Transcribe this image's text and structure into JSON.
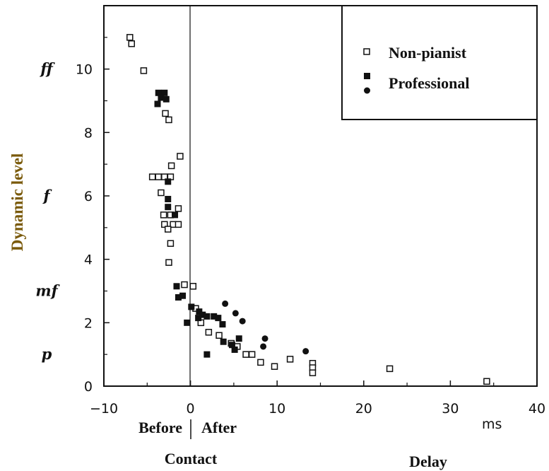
{
  "chart_data": {
    "type": "scatter",
    "ylabel": "Dynamic level",
    "x_unit": "ms",
    "xlim": [
      -10,
      40
    ],
    "ylim": [
      0,
      12
    ],
    "x_ticks": [
      -10,
      0,
      10,
      20,
      30,
      40
    ],
    "y_ticks": [
      0,
      2,
      4,
      6,
      8,
      10
    ],
    "x_tick_labels": [
      "−10",
      "0",
      "10",
      "20",
      "30",
      "40"
    ],
    "y_tick_labels": [
      "0",
      "2",
      "4",
      "6",
      "8",
      "10"
    ],
    "dynamic_markings": [
      {
        "label": "ff",
        "y": 10
      },
      {
        "label": "f",
        "y": 6
      },
      {
        "label": "mf",
        "y": 3
      },
      {
        "label": "p",
        "y": 1
      }
    ],
    "annotations": {
      "before": "Before",
      "after": "After",
      "contact": "Contact",
      "delay": "Delay"
    },
    "legend": {
      "placement": "top-right",
      "entries": [
        {
          "label": "Non-pianist",
          "markers": [
            "open-square"
          ]
        },
        {
          "label": "Professional",
          "markers": [
            "filled-square",
            "filled-circle"
          ]
        }
      ]
    },
    "series": [
      {
        "name": "Non-pianist",
        "marker": "open-square",
        "points": [
          [
            -7.0,
            11.0
          ],
          [
            -6.8,
            10.8
          ],
          [
            -5.4,
            9.95
          ],
          [
            -2.9,
            8.6
          ],
          [
            -2.5,
            8.4
          ],
          [
            -1.2,
            7.25
          ],
          [
            -2.2,
            6.95
          ],
          [
            -4.4,
            6.6
          ],
          [
            -3.7,
            6.6
          ],
          [
            -3.0,
            6.6
          ],
          [
            -2.3,
            6.6
          ],
          [
            -3.4,
            6.1
          ],
          [
            -1.4,
            5.6
          ],
          [
            -3.1,
            5.4
          ],
          [
            -2.3,
            5.4
          ],
          [
            -3.0,
            5.1
          ],
          [
            -2.0,
            5.1
          ],
          [
            -1.4,
            5.1
          ],
          [
            -2.6,
            4.95
          ],
          [
            -2.3,
            4.5
          ],
          [
            -2.5,
            3.9
          ],
          [
            -0.7,
            3.2
          ],
          [
            0.3,
            3.15
          ],
          [
            0.6,
            2.45
          ],
          [
            1.2,
            2.0
          ],
          [
            2.1,
            1.7
          ],
          [
            3.3,
            1.6
          ],
          [
            4.7,
            1.35
          ],
          [
            5.4,
            1.25
          ],
          [
            6.4,
            1.0
          ],
          [
            7.1,
            1.0
          ],
          [
            8.1,
            0.75
          ],
          [
            9.7,
            0.62
          ],
          [
            11.5,
            0.85
          ],
          [
            14.1,
            0.72
          ],
          [
            14.1,
            0.58
          ],
          [
            14.1,
            0.42
          ],
          [
            23.0,
            0.55
          ],
          [
            34.2,
            0.15
          ]
        ]
      },
      {
        "name": "Professional",
        "marker": "filled-square",
        "points": [
          [
            -3.7,
            9.25
          ],
          [
            -3.0,
            9.25
          ],
          [
            -3.4,
            9.1
          ],
          [
            -2.8,
            9.05
          ],
          [
            -3.8,
            8.9
          ],
          [
            -2.6,
            6.45
          ],
          [
            -2.6,
            5.9
          ],
          [
            -2.6,
            5.65
          ],
          [
            -1.8,
            5.4
          ],
          [
            -1.6,
            3.15
          ],
          [
            -1.4,
            2.8
          ],
          [
            -0.9,
            2.85
          ],
          [
            -0.4,
            2.0
          ],
          [
            0.1,
            2.5
          ],
          [
            1.0,
            2.35
          ],
          [
            1.4,
            2.25
          ],
          [
            0.9,
            2.15
          ],
          [
            1.9,
            2.2
          ],
          [
            2.7,
            2.2
          ],
          [
            3.2,
            2.15
          ],
          [
            3.7,
            1.95
          ],
          [
            3.8,
            1.4
          ],
          [
            5.6,
            1.5
          ],
          [
            4.8,
            1.3
          ],
          [
            5.1,
            1.15
          ],
          [
            1.9,
            1.0
          ]
        ]
      },
      {
        "name": "Professional",
        "marker": "filled-circle",
        "points": [
          [
            4.0,
            2.6
          ],
          [
            5.2,
            2.3
          ],
          [
            6.0,
            2.05
          ],
          [
            8.6,
            1.5
          ],
          [
            8.4,
            1.25
          ],
          [
            13.3,
            1.1
          ]
        ]
      }
    ]
  }
}
